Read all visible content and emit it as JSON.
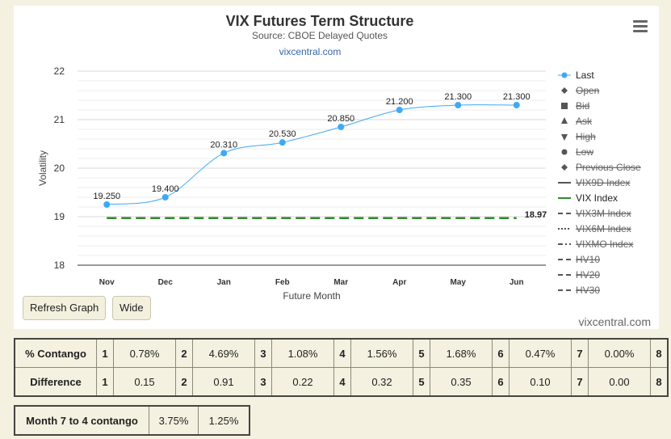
{
  "chart_data": {
    "type": "line",
    "title": "VIX Futures Term Structure",
    "subtitle": "Source: CBOE Delayed Quotes",
    "credit": "vixcentral.com",
    "xlabel": "Future Month",
    "ylabel": "Volatility",
    "categories": [
      "Nov",
      "Dec",
      "Jan",
      "Feb",
      "Mar",
      "Apr",
      "May",
      "Jun"
    ],
    "ylim": [
      18,
      22
    ],
    "yticks": [
      "18",
      "19",
      "20",
      "21",
      "22"
    ],
    "series": [
      {
        "name": "Last",
        "values": [
          19.25,
          19.4,
          20.31,
          20.53,
          20.85,
          21.2,
          21.3,
          21.3
        ],
        "labels": [
          "19.250",
          "19.400",
          "20.310",
          "20.530",
          "20.850",
          "21.200",
          "21.300",
          "21.300"
        ],
        "color": "#3fa9f5"
      },
      {
        "name": "VIX Index",
        "values": [
          18.97,
          18.97,
          18.97,
          18.97,
          18.97,
          18.97,
          18.97,
          18.97
        ],
        "end_label": "18.97",
        "color": "#2e8b2e",
        "dashed": true
      }
    ],
    "legend": {
      "position": "right",
      "items": [
        {
          "label": "Last",
          "symbol": "circle",
          "active": true
        },
        {
          "label": "Open",
          "symbol": "diamond",
          "active": false
        },
        {
          "label": "Bid",
          "symbol": "square",
          "active": false
        },
        {
          "label": "Ask",
          "symbol": "triangle",
          "active": false
        },
        {
          "label": "High",
          "symbol": "triangle-down",
          "active": false
        },
        {
          "label": "Low",
          "symbol": "circle",
          "active": false
        },
        {
          "label": "Previous Close",
          "symbol": "diamond",
          "active": false
        },
        {
          "label": "VIX9D Index",
          "symbol": "line",
          "active": false
        },
        {
          "label": "VIX Index",
          "symbol": "line-green",
          "active": true
        },
        {
          "label": "VIX3M Index",
          "symbol": "dash",
          "active": false
        },
        {
          "label": "VIX6M Index",
          "symbol": "dot",
          "active": false
        },
        {
          "label": "VIXMO Index",
          "symbol": "dashdot",
          "active": false
        },
        {
          "label": "HV10",
          "symbol": "dash",
          "active": false
        },
        {
          "label": "HV20",
          "symbol": "dash",
          "active": false
        },
        {
          "label": "HV30",
          "symbol": "dash",
          "active": false
        }
      ]
    },
    "grid": true
  },
  "controls": {
    "refresh_label": "Refresh Graph",
    "wide_label": "Wide"
  },
  "stats": {
    "rows": [
      {
        "label": "% Contango",
        "cells": [
          [
            "1",
            "0.78%"
          ],
          [
            "2",
            "4.69%"
          ],
          [
            "3",
            "1.08%"
          ],
          [
            "4",
            "1.56%"
          ],
          [
            "5",
            "1.68%"
          ],
          [
            "6",
            "0.47%"
          ],
          [
            "7",
            "0.00%"
          ],
          [
            "8",
            ""
          ]
        ]
      },
      {
        "label": "Difference",
        "cells": [
          [
            "1",
            "0.15"
          ],
          [
            "2",
            "0.91"
          ],
          [
            "3",
            "0.22"
          ],
          [
            "4",
            "0.32"
          ],
          [
            "5",
            "0.35"
          ],
          [
            "6",
            "0.10"
          ],
          [
            "7",
            "0.00"
          ],
          [
            "8",
            ""
          ]
        ]
      }
    ]
  },
  "month_contango": {
    "label": "Month 7 to 4 contango",
    "values": [
      "3.75%",
      "1.25%"
    ]
  }
}
